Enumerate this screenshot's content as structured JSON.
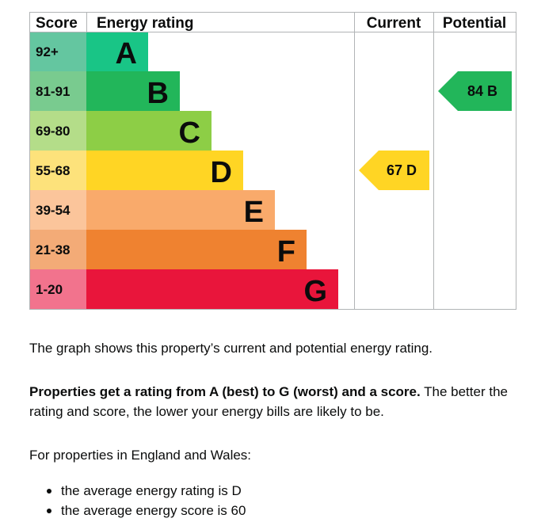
{
  "chart_data": {
    "type": "bar",
    "headers": {
      "score": "Score",
      "rating": "Energy rating",
      "current": "Current",
      "potential": "Potential"
    },
    "bands": [
      {
        "letter": "A",
        "range": "92+",
        "color": "#19c586",
        "score_color": "#64c6a0"
      },
      {
        "letter": "B",
        "range": "81-91",
        "color": "#22b65a",
        "score_color": "#79cb8f"
      },
      {
        "letter": "C",
        "range": "69-80",
        "color": "#8dce46",
        "score_color": "#b4dd89"
      },
      {
        "letter": "D",
        "range": "55-68",
        "color": "#ffd524",
        "score_color": "#fde27b"
      },
      {
        "letter": "E",
        "range": "39-54",
        "color": "#f9aa6b",
        "score_color": "#fbc59b"
      },
      {
        "letter": "F",
        "range": "21-38",
        "color": "#ef8230",
        "score_color": "#f3ab77"
      },
      {
        "letter": "G",
        "range": "1-20",
        "color": "#e9153b",
        "score_color": "#f2738d"
      }
    ],
    "current": {
      "value": 67,
      "band": "D",
      "label": "67  D",
      "color": "#ffd524"
    },
    "potential": {
      "value": 84,
      "band": "B",
      "label": "84  B",
      "color": "#22b65a"
    }
  },
  "text": {
    "p1": "The graph shows this property’s current and potential energy rating.",
    "p2_bold": "Properties get a rating from A (best) to G (worst) and a score.",
    "p2_rest": " The better the rating and score, the lower your energy bills are likely to be.",
    "p3": "For properties in England and Wales:",
    "bullets": [
      "the average energy rating is D",
      "the average energy score is 60"
    ]
  }
}
